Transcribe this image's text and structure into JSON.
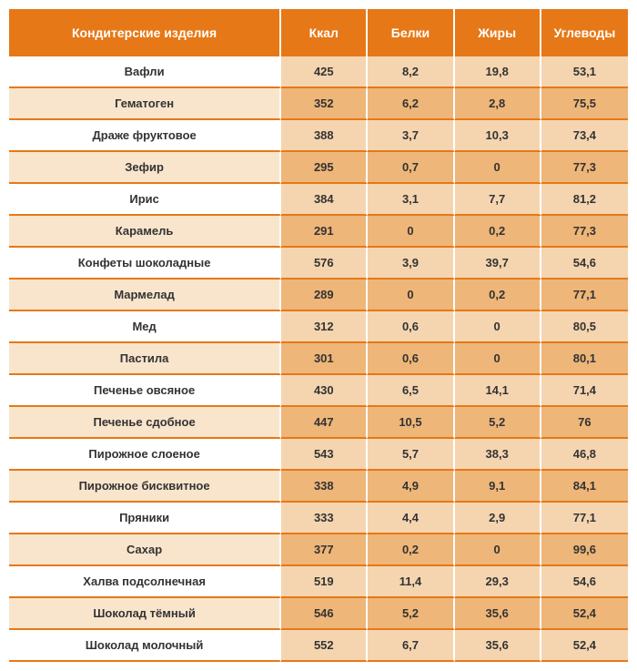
{
  "table": {
    "columns": [
      "Кондитерские изделия",
      "Ккал",
      "Белки",
      "Жиры",
      "Углеводы"
    ],
    "rows": [
      [
        "Вафли",
        "425",
        "8,2",
        "19,8",
        "53,1"
      ],
      [
        "Гематоген",
        "352",
        "6,2",
        "2,8",
        "75,5"
      ],
      [
        "Драже фруктовое",
        "388",
        "3,7",
        "10,3",
        "73,4"
      ],
      [
        "Зефир",
        "295",
        "0,7",
        "0",
        "77,3"
      ],
      [
        "Ирис",
        "384",
        "3,1",
        "7,7",
        "81,2"
      ],
      [
        "Карамель",
        "291",
        "0",
        "0,2",
        "77,3"
      ],
      [
        "Конфеты шоколадные",
        "576",
        "3,9",
        "39,7",
        "54,6"
      ],
      [
        "Мармелад",
        "289",
        "0",
        "0,2",
        "77,1"
      ],
      [
        "Мед",
        "312",
        "0,6",
        "0",
        "80,5"
      ],
      [
        "Пастила",
        "301",
        "0,6",
        "0",
        "80,1"
      ],
      [
        "Печенье овсяное",
        "430",
        "6,5",
        "14,1",
        "71,4"
      ],
      [
        "Печенье сдобное",
        "447",
        "10,5",
        "5,2",
        "76"
      ],
      [
        "Пирожное слоеное",
        "543",
        "5,7",
        "38,3",
        "46,8"
      ],
      [
        "Пирожное бисквитное",
        "338",
        "4,9",
        "9,1",
        "84,1"
      ],
      [
        "Пряники",
        "333",
        "4,4",
        "2,9",
        "77,1"
      ],
      [
        "Сахар",
        "377",
        "0,2",
        "0",
        "99,6"
      ],
      [
        "Халва подсолнечная",
        "519",
        "11,4",
        "29,3",
        "54,6"
      ],
      [
        "Шоколад тёмный",
        "546",
        "5,2",
        "35,6",
        "52,4"
      ],
      [
        "Шоколад молочный",
        "552",
        "6,7",
        "35,6",
        "52,4"
      ]
    ],
    "header_bg": "#e67817",
    "header_text_color": "#ffffff",
    "row_light_name_bg": "#ffffff",
    "row_light_value_bg": "#f5d5b0",
    "row_dark_name_bg": "#f9e5cc",
    "row_dark_value_bg": "#eeb679",
    "border_color": "#e67817"
  }
}
